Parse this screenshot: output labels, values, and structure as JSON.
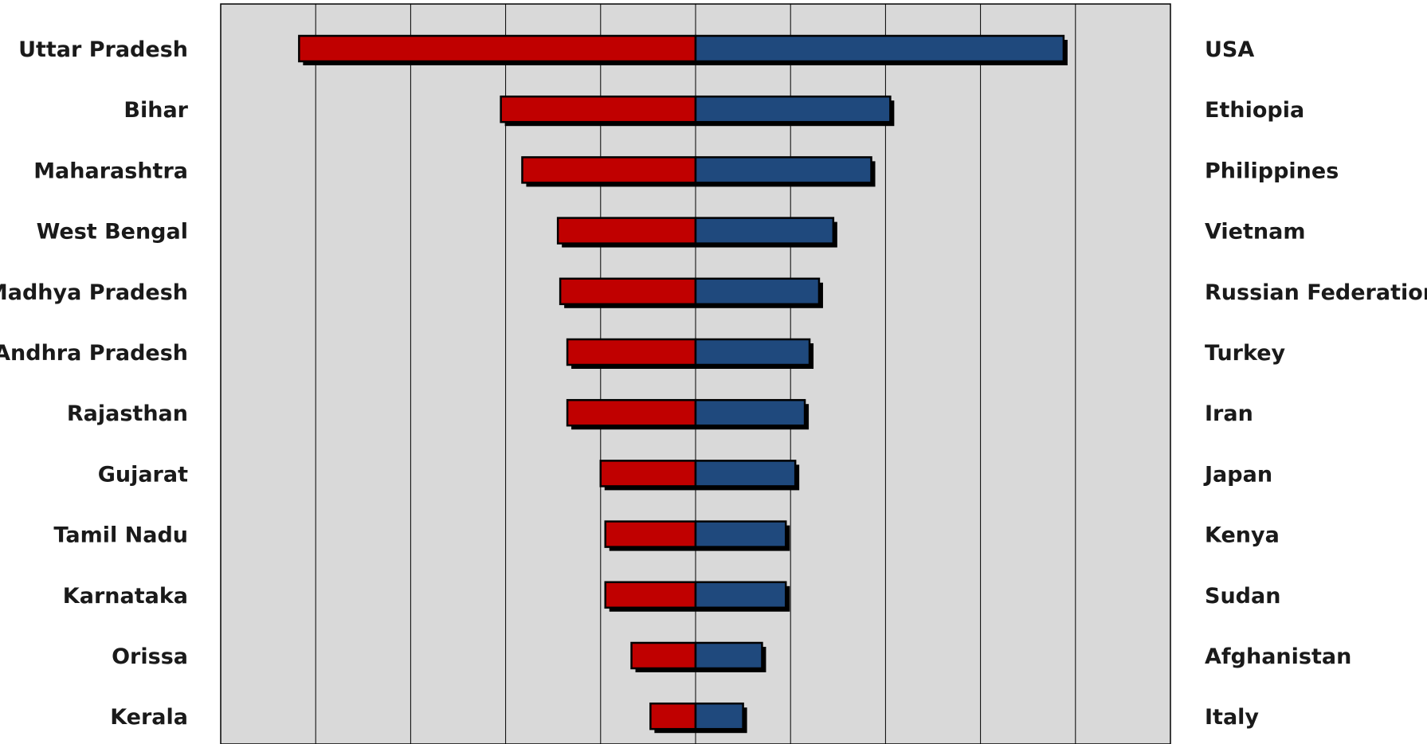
{
  "chart_data": {
    "type": "bar",
    "orientation": "horizontal",
    "layout": "diverging",
    "grid": true,
    "x_tick_labels": "none",
    "title": "",
    "xlabel": "",
    "ylabel": "",
    "colors": {
      "left": "#c00000",
      "right": "#1f497d",
      "background": "#d9d9d9",
      "outline": "#000000"
    },
    "left_categories": [
      "Uttar Pradesh",
      "Bihar",
      "Maharashtra",
      "West Bengal",
      "Madhya Pradesh",
      "Andhra Pradesh",
      "Rajasthan",
      "Gujarat",
      "Tamil Nadu",
      "Karnataka",
      "Orissa",
      "Kerala"
    ],
    "right_categories": [
      "USA",
      "Ethiopia",
      "Philippines",
      "Vietnam",
      "Russian Federation",
      "Turkey",
      "Iran",
      "Japan",
      "Kenya",
      "Sudan",
      "Afghanistan",
      "Italy"
    ],
    "series": [
      {
        "side": "left",
        "values": [
          8.35,
          4.1,
          3.65,
          2.9,
          2.85,
          2.7,
          2.7,
          2.0,
          1.9,
          1.9,
          1.35,
          0.95
        ]
      },
      {
        "side": "right",
        "values": [
          7.75,
          4.1,
          3.7,
          2.9,
          2.6,
          2.4,
          2.3,
          2.1,
          1.9,
          1.9,
          1.4,
          1.0
        ]
      }
    ]
  }
}
